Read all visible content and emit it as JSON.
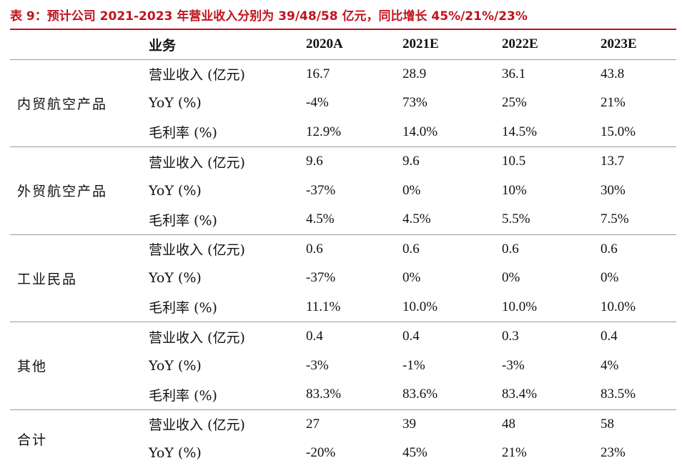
{
  "title": "表 9：预计公司 2021-2023 年营业收入分别为 39/48/58 亿元，同比增长 45%/21%/23%",
  "header": [
    "",
    "业务",
    "2020A",
    "2021E",
    "2022E",
    "2023E"
  ],
  "groups": [
    {
      "name": "内贸航空产品",
      "rows": [
        {
          "metric": "营业收入 (亿元)",
          "values": [
            "16.7",
            "28.9",
            "36.1",
            "43.8"
          ]
        },
        {
          "metric": "YoY (%)",
          "values": [
            "-4%",
            "73%",
            "25%",
            "21%"
          ]
        },
        {
          "metric": "毛利率 (%)",
          "values": [
            "12.9%",
            "14.0%",
            "14.5%",
            "15.0%"
          ]
        }
      ]
    },
    {
      "name": "外贸航空产品",
      "rows": [
        {
          "metric": "营业收入 (亿元)",
          "values": [
            "9.6",
            "9.6",
            "10.5",
            "13.7"
          ]
        },
        {
          "metric": "YoY (%)",
          "values": [
            "-37%",
            "0%",
            "10%",
            "30%"
          ]
        },
        {
          "metric": "毛利率 (%)",
          "values": [
            "4.5%",
            "4.5%",
            "5.5%",
            "7.5%"
          ]
        }
      ]
    },
    {
      "name": "工业民品",
      "rows": [
        {
          "metric": "营业收入 (亿元)",
          "values": [
            "0.6",
            "0.6",
            "0.6",
            "0.6"
          ]
        },
        {
          "metric": "YoY (%)",
          "values": [
            "-37%",
            "0%",
            "0%",
            "0%"
          ]
        },
        {
          "metric": "毛利率 (%)",
          "values": [
            "11.1%",
            "10.0%",
            "10.0%",
            "10.0%"
          ]
        }
      ]
    },
    {
      "name": "其他",
      "rows": [
        {
          "metric": "营业收入 (亿元)",
          "values": [
            "0.4",
            "0.4",
            "0.3",
            "0.4"
          ]
        },
        {
          "metric": "YoY (%)",
          "values": [
            "-3%",
            "-1%",
            "-3%",
            "4%"
          ]
        },
        {
          "metric": "毛利率 (%)",
          "values": [
            "83.3%",
            "83.6%",
            "83.4%",
            "83.5%"
          ]
        }
      ]
    },
    {
      "name": "合计",
      "rows": [
        {
          "metric": "营业收入 (亿元)",
          "values": [
            "27",
            "39",
            "48",
            "58"
          ]
        },
        {
          "metric": "YoY (%)",
          "values": [
            "-20%",
            "45%",
            "21%",
            "23%"
          ]
        }
      ]
    }
  ]
}
